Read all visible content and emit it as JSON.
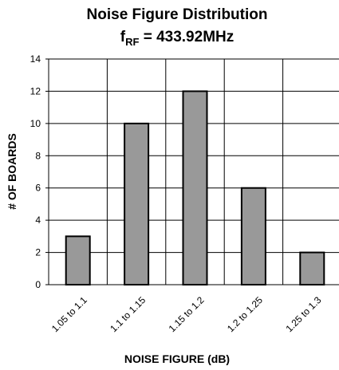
{
  "chart_data": {
    "type": "bar",
    "title": "Noise Figure Distribution",
    "subtitle": {
      "prefix": "f",
      "subscript": "RF",
      "text": " = 433.92MHz"
    },
    "xlabel": "NOISE FIGURE (dB)",
    "ylabel": "# OF BOARDS",
    "categories": [
      "1.05 to 1.1",
      "1.1 to 1.15",
      "1.15 to 1.2",
      "1.2 to 1.25",
      "1.25 to 1.3"
    ],
    "values": [
      3,
      10,
      12,
      6,
      2
    ],
    "ylim": [
      0,
      14
    ],
    "yticks": [
      "0",
      "2",
      "4",
      "6",
      "8",
      "10",
      "12",
      "14"
    ],
    "grid": true,
    "legend": "none",
    "colors": {
      "bar_fill": "#999999",
      "bar_stroke": "#000000",
      "grid": "#000000"
    }
  }
}
